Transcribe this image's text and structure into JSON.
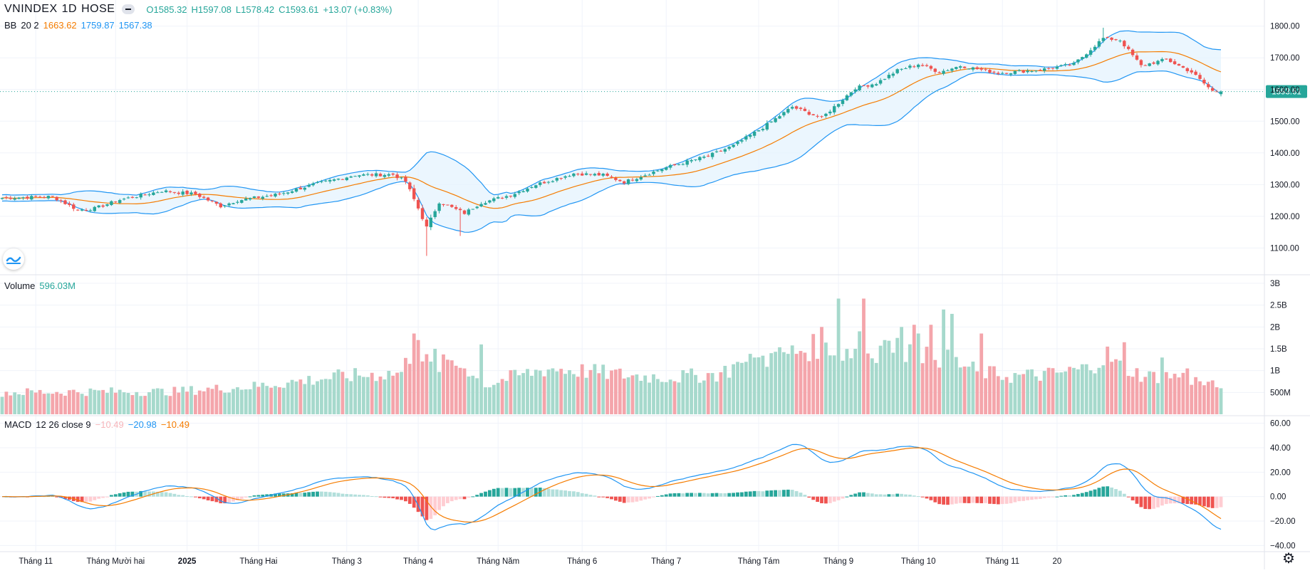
{
  "header": {
    "symbol": "VNINDEX",
    "interval": "1D",
    "exchange": "HOSE",
    "ohlc": {
      "o": "O1585.32",
      "h": "H1597.08",
      "l": "L1578.42",
      "c": "C1593.61",
      "change": "+13.07 (+0.83%)"
    }
  },
  "bb_legend": {
    "name": "BB",
    "params": "20 2",
    "basis": "1663.62",
    "upper": "1759.87",
    "lower": "1567.38"
  },
  "volume_legend": {
    "name": "Volume",
    "value": "596.03M"
  },
  "macd_legend": {
    "name": "MACD",
    "params": "12 26 close 9",
    "hist": "−10.49",
    "macd": "−20.98",
    "signal": "−10.49"
  },
  "price_tag": "1593.61",
  "colors": {
    "up": "#26a69a",
    "down": "#ef5350",
    "vol_up": "#a6d9cc",
    "vol_down": "#f4a5ab",
    "basis": "#f57c00",
    "bands": "#2196f3",
    "band_fill": "#e3f2fd",
    "grid": "#f0f3fa",
    "tag": "#26a69a"
  },
  "icons": {
    "logo": "wave-logo-icon",
    "settings": "gear-icon",
    "collapse": "minus-pill-icon"
  },
  "chart_data": [
    {
      "type": "candlestick",
      "title": "VNINDEX 1D HOSE",
      "y_ticks": [
        "1800.00",
        "1700.00",
        "1600.00",
        "1500.00",
        "1400.00",
        "1300.00",
        "1200.00",
        "1100.00"
      ],
      "ylim": [
        1020,
        1860
      ],
      "x_ticks": [
        "Tháng 11",
        "Tháng Mười hai",
        "2025",
        "Tháng Hai",
        "Tháng 3",
        "Tháng 4",
        "Tháng Năm",
        "Tháng 6",
        "Tháng 7",
        "Tháng Tám",
        "Tháng 9",
        "Tháng 10",
        "Tháng 11",
        "20"
      ],
      "anchors": [
        [
          0,
          1258
        ],
        [
          12,
          1262
        ],
        [
          18,
          1220
        ],
        [
          22,
          1225
        ],
        [
          28,
          1252
        ],
        [
          38,
          1280
        ],
        [
          46,
          1270
        ],
        [
          52,
          1232
        ],
        [
          56,
          1250
        ],
        [
          66,
          1270
        ],
        [
          74,
          1300
        ],
        [
          84,
          1330
        ],
        [
          93,
          1332
        ],
        [
          96,
          1310
        ],
        [
          99,
          1225
        ],
        [
          101,
          1165
        ],
        [
          104,
          1245
        ],
        [
          110,
          1210
        ],
        [
          114,
          1243
        ],
        [
          121,
          1267
        ],
        [
          127,
          1300
        ],
        [
          136,
          1335
        ],
        [
          143,
          1330
        ],
        [
          148,
          1308
        ],
        [
          158,
          1354
        ],
        [
          168,
          1390
        ],
        [
          174,
          1423
        ],
        [
          181,
          1480
        ],
        [
          188,
          1545
        ],
        [
          195,
          1510
        ],
        [
          203,
          1605
        ],
        [
          208,
          1620
        ],
        [
          213,
          1660
        ],
        [
          218,
          1680
        ],
        [
          223,
          1655
        ],
        [
          228,
          1675
        ],
        [
          237,
          1652
        ],
        [
          247,
          1662
        ],
        [
          255,
          1680
        ],
        [
          262,
          1762
        ],
        [
          266,
          1756
        ],
        [
          271,
          1675
        ],
        [
          277,
          1695
        ],
        [
          283,
          1655
        ],
        [
          288,
          1595
        ],
        [
          290,
          1593.61
        ]
      ],
      "last": {
        "o": 1585.32,
        "h": 1597.08,
        "l": 1578.42,
        "c": 1593.61
      },
      "bb": {
        "basis": 1663.62,
        "upper": 1759.87,
        "lower": 1567.38,
        "length": 20,
        "mult": 2
      }
    },
    {
      "type": "bar",
      "title": "Volume",
      "y_ticks": [
        "3B",
        "2.5B",
        "2B",
        "1.5B",
        "1B",
        "500M"
      ],
      "ylim": [
        0,
        3000
      ],
      "unit": "M",
      "anchors": [
        [
          0,
          500
        ],
        [
          20,
          520
        ],
        [
          40,
          520
        ],
        [
          60,
          640
        ],
        [
          80,
          860
        ],
        [
          95,
          950
        ],
        [
          98,
          1550
        ],
        [
          100,
          1250
        ],
        [
          103,
          1050
        ],
        [
          107,
          1250
        ],
        [
          115,
          650
        ],
        [
          120,
          820
        ],
        [
          130,
          1050
        ],
        [
          140,
          980
        ],
        [
          150,
          880
        ],
        [
          160,
          850
        ],
        [
          170,
          920
        ],
        [
          180,
          1250
        ],
        [
          190,
          1450
        ],
        [
          196,
          1620
        ],
        [
          200,
          1430
        ],
        [
          205,
          1380
        ],
        [
          210,
          1520
        ],
        [
          218,
          1450
        ],
        [
          225,
          1250
        ],
        [
          232,
          980
        ],
        [
          240,
          870
        ],
        [
          250,
          920
        ],
        [
          258,
          1050
        ],
        [
          263,
          1350
        ],
        [
          266,
          1100
        ],
        [
          272,
          870
        ],
        [
          280,
          880
        ],
        [
          290,
          596.03
        ]
      ],
      "spikes": [
        [
          98,
          1850
        ],
        [
          99,
          1700
        ],
        [
          103,
          1500
        ],
        [
          106,
          1250
        ],
        [
          110,
          1050
        ],
        [
          114,
          1600
        ],
        [
          175,
          1200
        ],
        [
          179,
          1300
        ],
        [
          183,
          1400
        ],
        [
          190,
          1450
        ],
        [
          195,
          2000
        ],
        [
          199,
          2650
        ],
        [
          203,
          1500
        ],
        [
          204,
          1900
        ],
        [
          205,
          2650
        ],
        [
          210,
          1700
        ],
        [
          214,
          2000
        ],
        [
          217,
          2050
        ],
        [
          218,
          1850
        ],
        [
          221,
          2050
        ],
        [
          224,
          2400
        ],
        [
          226,
          2300
        ],
        [
          233,
          1850
        ],
        [
          263,
          1550
        ],
        [
          267,
          1650
        ],
        [
          276,
          1300
        ],
        [
          282,
          1050
        ]
      ],
      "last": 596.03
    },
    {
      "type": "macd",
      "title": "MACD",
      "params": "12 26 close 9",
      "y_ticks": [
        "60.00",
        "40.00",
        "20.00",
        "0.00",
        "−20.00",
        "−40.00"
      ],
      "ylim": [
        -45,
        65
      ],
      "last": {
        "hist": -10.49,
        "macd": -20.98,
        "signal": -10.49
      }
    }
  ]
}
